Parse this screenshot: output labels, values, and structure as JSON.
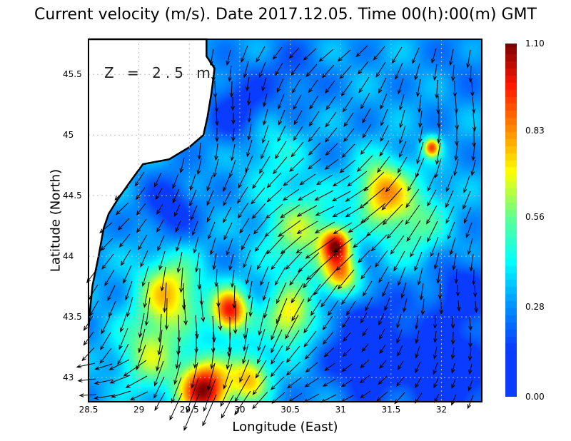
{
  "chart_data": {
    "type": "heatmap",
    "title": "Current velocity (m/s). Date 2017.12.05. Time 00(h):00(m) GMT",
    "xlabel": "Longitude (East)",
    "ylabel": "Latitude (North)",
    "annotation": "Z = 2.5 m",
    "xlim": [
      28.5,
      32.4
    ],
    "ylim": [
      42.8,
      45.79
    ],
    "xticks": [
      "28.5",
      "29",
      "29.5",
      "30",
      "30.5",
      "31",
      "31.5",
      "32"
    ],
    "xtick_values": [
      28.5,
      29,
      29.5,
      30,
      30.5,
      31,
      31.5,
      32
    ],
    "yticks": [
      "43",
      "43.5",
      "44",
      "44.5",
      "45",
      "45.5"
    ],
    "ytick_values": [
      43,
      43.5,
      44,
      44.5,
      45,
      45.5
    ],
    "colorbar": {
      "min": 0,
      "max": 1.1,
      "ticks": [
        "0.00",
        "0.28",
        "0.56",
        "0.83",
        "1.10"
      ],
      "tick_values": [
        0,
        0.28,
        0.56,
        0.83,
        1.1
      ],
      "colors": [
        "#0a3cff",
        "#0a3cff",
        "#0090ff",
        "#00ffff",
        "#60ff90",
        "#ffff00",
        "#ff8c00",
        "#ff1800",
        "#7a0000"
      ],
      "stops": [
        0,
        0.15,
        0.28,
        0.42,
        0.56,
        0.7,
        0.83,
        0.97,
        1.1
      ]
    },
    "grid": true,
    "base_speed": 0.3,
    "speed_features": [
      {
        "lon": 29.65,
        "lat": 42.9,
        "v": 1.08,
        "r": 0.25
      },
      {
        "lon": 29.9,
        "lat": 43.55,
        "v": 0.98,
        "r": 0.18
      },
      {
        "lon": 29.3,
        "lat": 43.7,
        "v": 0.75,
        "r": 0.3
      },
      {
        "lon": 30.95,
        "lat": 44.1,
        "v": 0.92,
        "r": 0.14
      },
      {
        "lon": 31.0,
        "lat": 43.85,
        "v": 0.82,
        "r": 0.18
      },
      {
        "lon": 31.4,
        "lat": 44.55,
        "v": 0.75,
        "r": 0.25
      },
      {
        "lon": 31.9,
        "lat": 44.9,
        "v": 0.88,
        "r": 0.08
      },
      {
        "lon": 30.5,
        "lat": 43.5,
        "v": 0.72,
        "r": 0.25
      },
      {
        "lon": 30.6,
        "lat": 44.2,
        "v": 0.62,
        "r": 0.35
      },
      {
        "lon": 31.7,
        "lat": 44.3,
        "v": 0.55,
        "r": 0.35
      },
      {
        "lon": 29.1,
        "lat": 43.2,
        "v": 0.62,
        "r": 0.3
      },
      {
        "lon": 30.1,
        "lat": 43.0,
        "v": 0.75,
        "r": 0.2
      },
      {
        "lon": 31.3,
        "lat": 43.25,
        "v": 0.05,
        "r": 0.45
      },
      {
        "lon": 32.1,
        "lat": 43.0,
        "v": 0.05,
        "r": 0.4
      },
      {
        "lon": 32.2,
        "lat": 43.7,
        "v": 0.1,
        "r": 0.3
      },
      {
        "lon": 30.0,
        "lat": 45.2,
        "v": 0.1,
        "r": 0.3
      },
      {
        "lon": 29.3,
        "lat": 44.4,
        "v": 0.1,
        "r": 0.25
      },
      {
        "lon": 30.5,
        "lat": 45.5,
        "v": 0.2,
        "r": 0.3
      },
      {
        "lon": 32.2,
        "lat": 45.6,
        "v": 0.25,
        "r": 0.3
      },
      {
        "lon": 30.3,
        "lat": 44.9,
        "v": 0.45,
        "r": 0.3
      }
    ],
    "mean_flow_direction": "south-west",
    "coastline": [
      [
        28.5,
        45.79
      ],
      [
        29.67,
        45.79
      ],
      [
        29.67,
        45.65
      ],
      [
        29.75,
        45.55
      ],
      [
        29.72,
        45.35
      ],
      [
        29.68,
        45.15
      ],
      [
        29.64,
        45.0
      ],
      [
        29.5,
        44.9
      ],
      [
        29.3,
        44.8
      ],
      [
        29.04,
        44.76
      ],
      [
        28.9,
        44.6
      ],
      [
        28.79,
        44.47
      ],
      [
        28.7,
        44.35
      ],
      [
        28.65,
        44.23
      ],
      [
        28.6,
        44.0
      ],
      [
        28.54,
        43.76
      ],
      [
        28.52,
        43.6
      ],
      [
        28.5,
        43.41
      ]
    ]
  }
}
